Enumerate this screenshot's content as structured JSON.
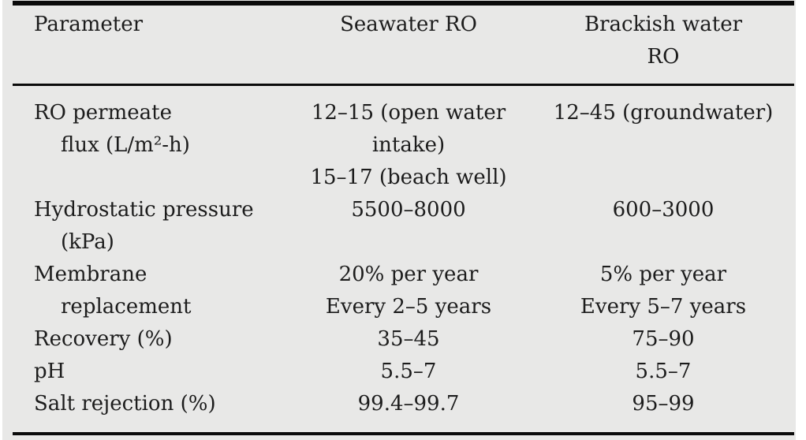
{
  "table": {
    "header": {
      "parameter": {
        "lines": [
          "Parameter"
        ]
      },
      "seawater": {
        "lines": [
          "Seawater RO"
        ]
      },
      "brackish": {
        "lines": [
          "Brackish water",
          "RO"
        ]
      }
    },
    "rows": [
      {
        "parameter": [
          "RO permeate",
          "flux (L/m²-h)"
        ],
        "seawater": [
          "12–15 (open water",
          "intake)",
          "15–17 (beach well)"
        ],
        "brackish": [
          "12–45 (groundwater)"
        ]
      },
      {
        "parameter": [
          "Hydrostatic pressure",
          "(kPa)"
        ],
        "seawater": [
          "5500–8000"
        ],
        "brackish": [
          "600–3000"
        ]
      },
      {
        "parameter": [
          "Membrane",
          "replacement"
        ],
        "seawater": [
          "20% per year",
          "Every 2–5 years"
        ],
        "brackish": [
          "5% per year",
          "Every 5–7 years"
        ]
      },
      {
        "parameter": [
          "Recovery (%)"
        ],
        "seawater": [
          "35–45"
        ],
        "brackish": [
          "75–90"
        ]
      },
      {
        "parameter": [
          "pH"
        ],
        "seawater": [
          "5.5–7"
        ],
        "brackish": [
          "5.5–7"
        ]
      },
      {
        "parameter": [
          "Salt rejection (%)"
        ],
        "seawater": [
          "99.4–99.7"
        ],
        "brackish": [
          "95–99"
        ]
      }
    ]
  },
  "colors": {
    "card_background": "#e8e8e7",
    "page_background": "#ffffff",
    "text": "#1c1c1c",
    "rule": "#0b0b0b"
  }
}
